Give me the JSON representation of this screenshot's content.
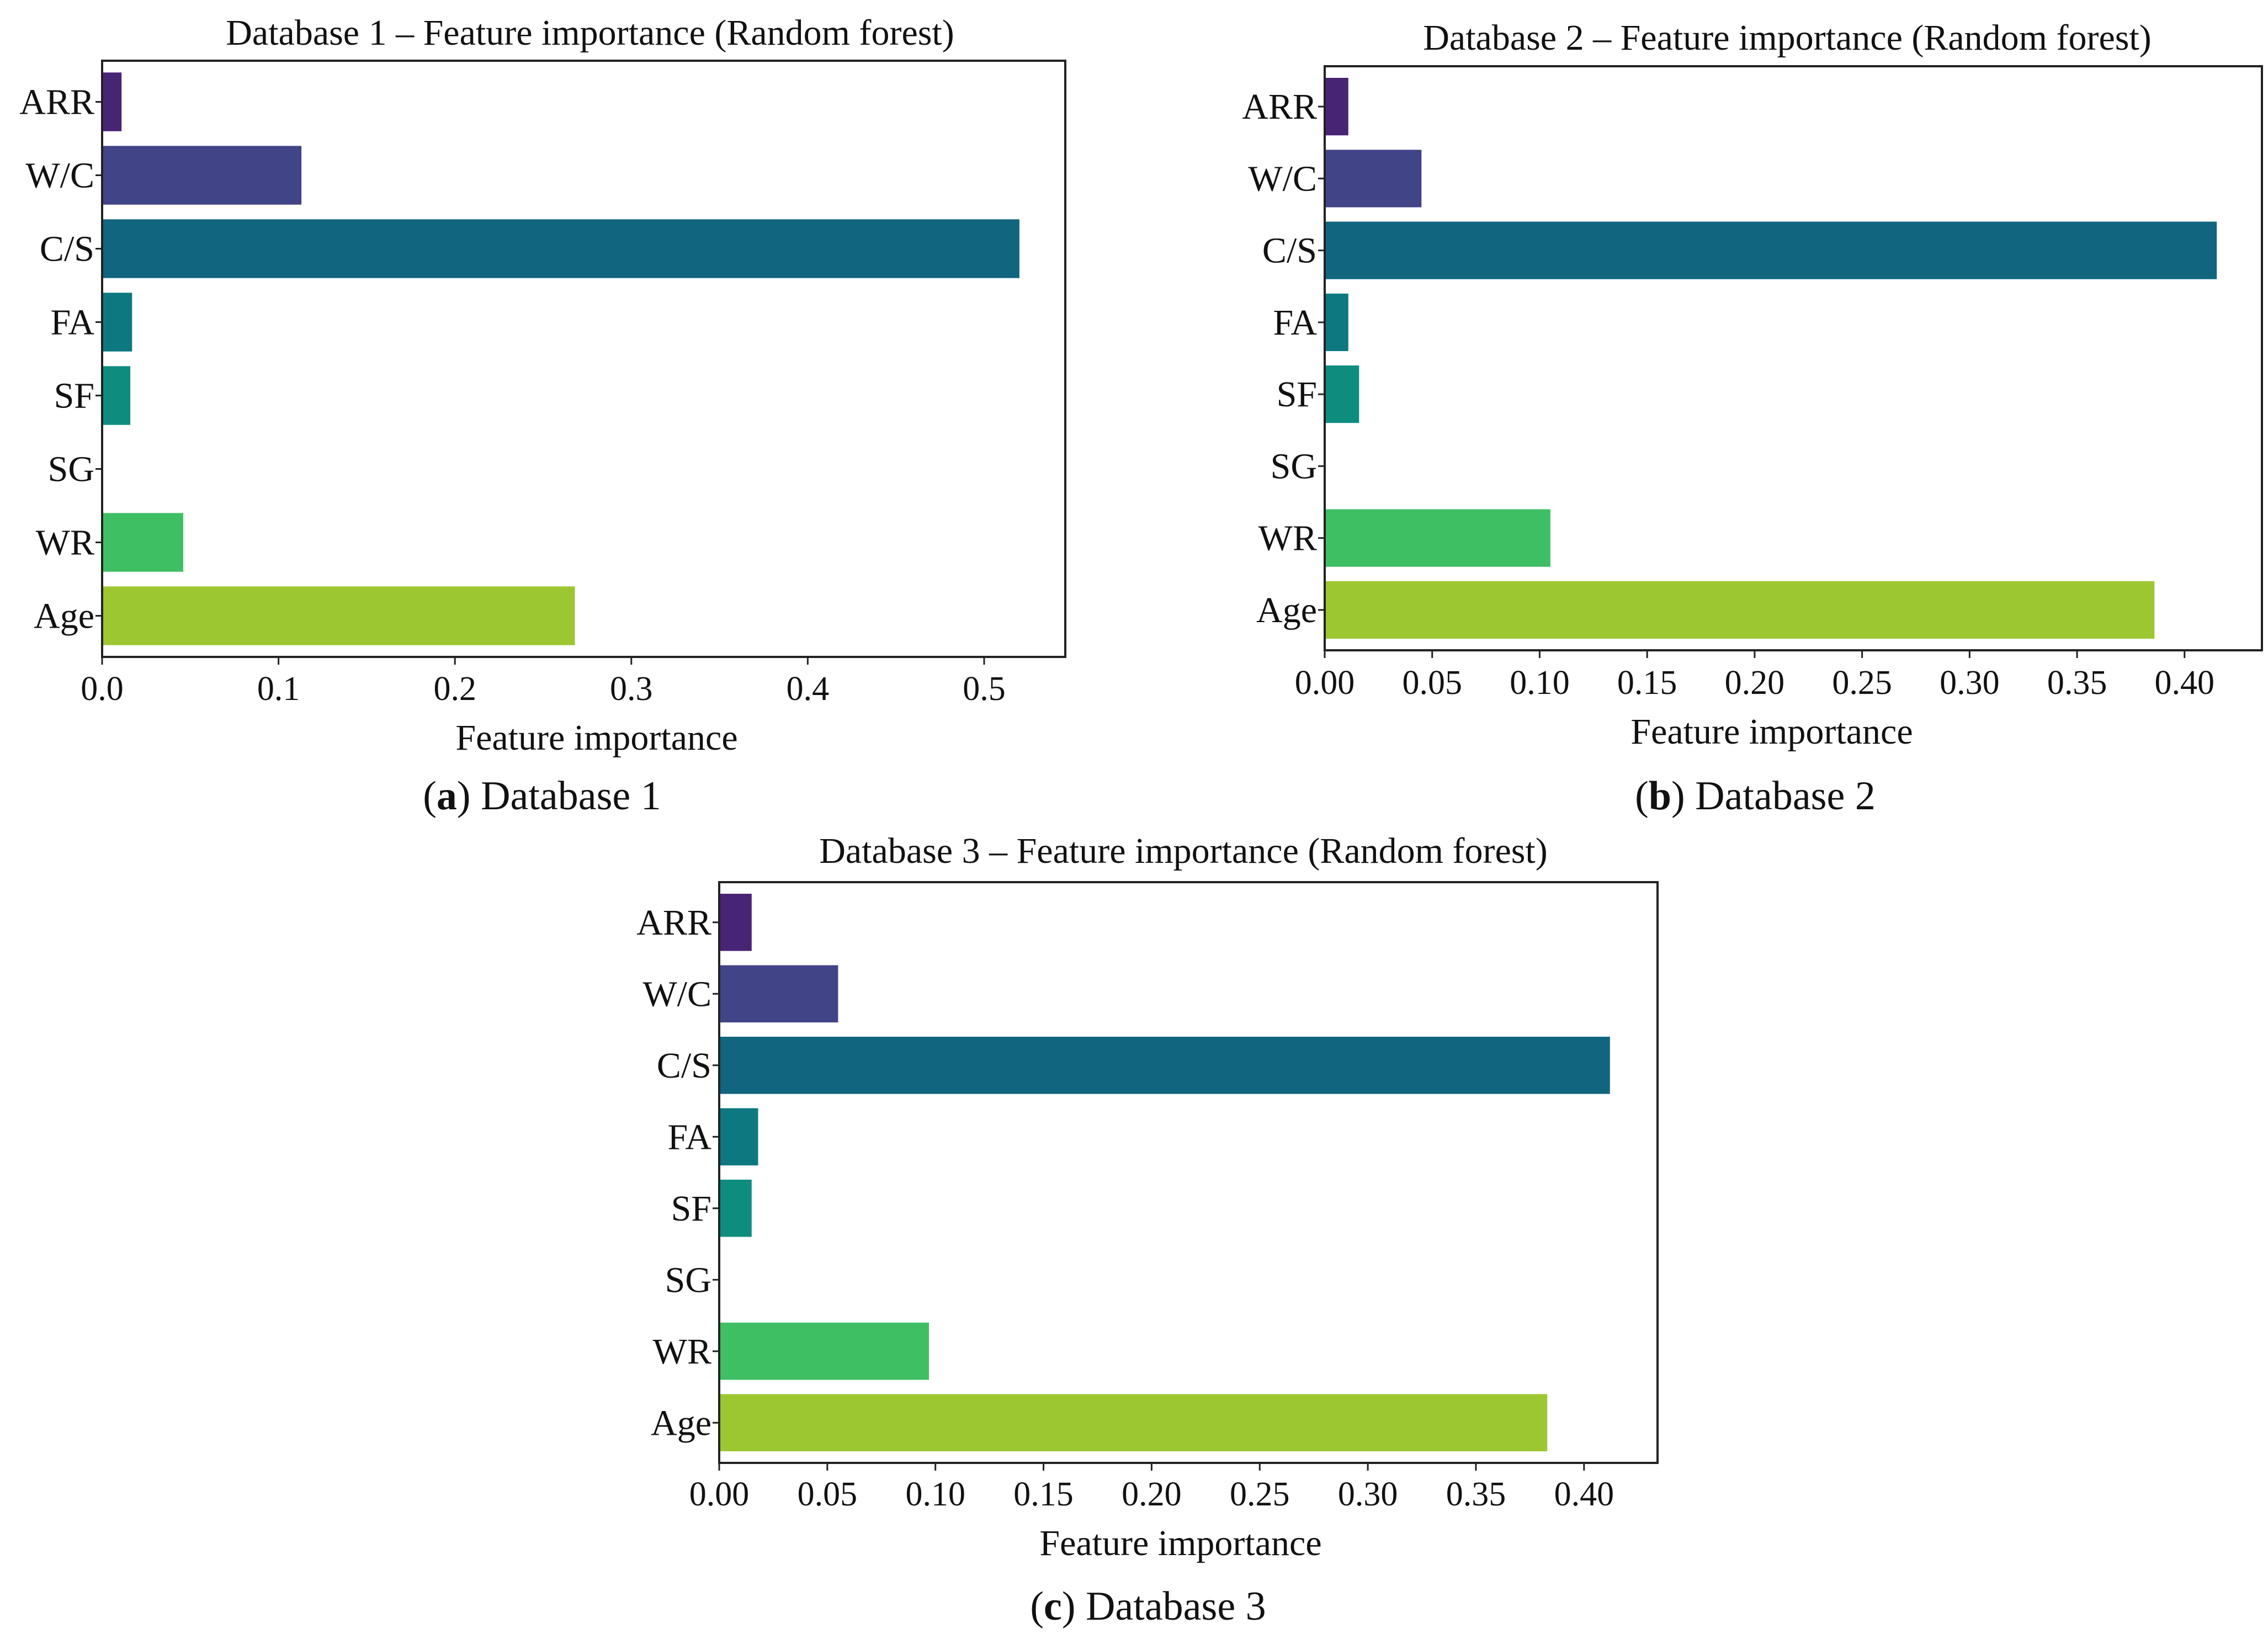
{
  "figure": {
    "panels": [
      {
        "id": "a",
        "title": "Database 1 – Feature importance (Random forest)",
        "caption_letter": "a",
        "caption_text": "Database 1"
      },
      {
        "id": "b",
        "title": "Database 2 – Feature importance (Random forest)",
        "caption_letter": "b",
        "caption_text": "Database 2"
      },
      {
        "id": "c",
        "title": "Database 3 – Feature importance (Random forest)",
        "caption_letter": "c",
        "caption_text": "Database 3"
      }
    ]
  },
  "colors": {
    "ARR": "#482475",
    "W/C": "#414487",
    "C/S": "#11657f",
    "FA": "#0d7880",
    "SF": "#0e8d7f",
    "SG": "#21a585",
    "WR": "#3fbf63",
    "Age": "#9cc731"
  },
  "chart_data": [
    {
      "type": "bar",
      "orientation": "horizontal",
      "title": "Database 1 – Feature importance (Random forest)",
      "xlabel": "Feature importance",
      "ylabel": "",
      "categories": [
        "ARR",
        "W/C",
        "C/S",
        "FA",
        "SF",
        "SG",
        "WR",
        "Age"
      ],
      "values": [
        0.011,
        0.113,
        0.52,
        0.017,
        0.016,
        0.0,
        0.046,
        0.268
      ],
      "xlim": [
        0,
        0.546
      ],
      "xticks": [
        0.0,
        0.1,
        0.2,
        0.3,
        0.4,
        0.5
      ],
      "xtick_labels": [
        "0.0",
        "0.1",
        "0.2",
        "0.3",
        "0.4",
        "0.5"
      ],
      "grid": false
    },
    {
      "type": "bar",
      "orientation": "horizontal",
      "title": "Database 2 – Feature importance (Random forest)",
      "xlabel": "Feature importance",
      "ylabel": "",
      "categories": [
        "ARR",
        "W/C",
        "C/S",
        "FA",
        "SF",
        "SG",
        "WR",
        "Age"
      ],
      "values": [
        0.011,
        0.045,
        0.415,
        0.011,
        0.016,
        0.0,
        0.105,
        0.386
      ],
      "xlim": [
        0,
        0.436
      ],
      "xticks": [
        0.0,
        0.05,
        0.1,
        0.15,
        0.2,
        0.25,
        0.3,
        0.35,
        0.4
      ],
      "xtick_labels": [
        "0.00",
        "0.05",
        "0.10",
        "0.15",
        "0.20",
        "0.25",
        "0.30",
        "0.35",
        "0.40"
      ],
      "grid": false
    },
    {
      "type": "bar",
      "orientation": "horizontal",
      "title": "Database 3 – Feature importance (Random forest)",
      "xlabel": "Feature importance",
      "ylabel": "",
      "categories": [
        "ARR",
        "W/C",
        "C/S",
        "FA",
        "SF",
        "SG",
        "WR",
        "Age"
      ],
      "values": [
        0.015,
        0.055,
        0.412,
        0.018,
        0.015,
        0.0,
        0.097,
        0.383
      ],
      "xlim": [
        0,
        0.434
      ],
      "xticks": [
        0.0,
        0.05,
        0.1,
        0.15,
        0.2,
        0.25,
        0.3,
        0.35,
        0.4
      ],
      "xtick_labels": [
        "0.00",
        "0.05",
        "0.10",
        "0.15",
        "0.20",
        "0.25",
        "0.30",
        "0.35",
        "0.40"
      ],
      "grid": false
    }
  ]
}
